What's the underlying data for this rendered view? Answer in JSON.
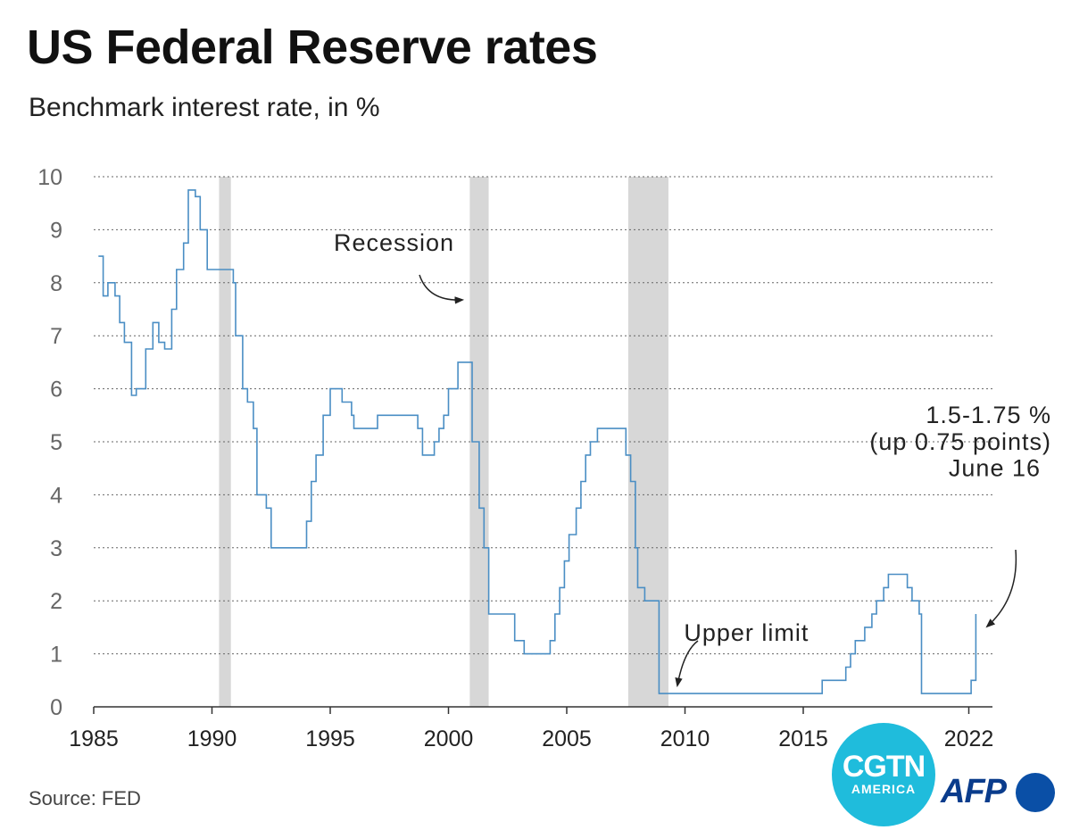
{
  "header": {
    "title": "US Federal Reserve rates",
    "subtitle": "Benchmark interest rate, in %"
  },
  "footer": {
    "source": "Source: FED"
  },
  "logos": {
    "cgtn_main": "CGTN",
    "cgtn_sub": "AMERICA",
    "afp": "AFP"
  },
  "colors": {
    "line": "#4a8ec4",
    "recession": "#d7d7d7",
    "grid": "#666666",
    "cgtn": "#1fbcdc",
    "afp": "#0a3c8c"
  },
  "chart_data": {
    "type": "line",
    "title": "US Federal Reserve rates",
    "subtitle": "Benchmark interest rate, in %",
    "xlim": [
      1985,
      2023
    ],
    "ylim": [
      0,
      10
    ],
    "x_ticks": [
      {
        "value": 1985,
        "label": "1985"
      },
      {
        "value": 1990,
        "label": "1990"
      },
      {
        "value": 1995,
        "label": "1995"
      },
      {
        "value": 2000,
        "label": "2000"
      },
      {
        "value": 2005,
        "label": "2005"
      },
      {
        "value": 2010,
        "label": "2010"
      },
      {
        "value": 2015,
        "label": "2015"
      },
      {
        "value": 2022,
        "label": "2022"
      }
    ],
    "y_ticks": [
      0,
      1,
      2,
      3,
      4,
      5,
      6,
      7,
      8,
      9,
      10
    ],
    "grid": "horizontal dotted",
    "step": true,
    "recessions": [
      {
        "start": 1990.3,
        "end": 1990.8
      },
      {
        "start": 2000.9,
        "end": 2001.7
      },
      {
        "start": 2007.6,
        "end": 2009.3
      }
    ],
    "series": [
      {
        "name": "Upper limit",
        "points": [
          [
            1985.2,
            8.5
          ],
          [
            1985.4,
            7.75
          ],
          [
            1985.6,
            8.0
          ],
          [
            1985.9,
            7.75
          ],
          [
            1986.1,
            7.25
          ],
          [
            1986.3,
            6.875
          ],
          [
            1986.6,
            5.875
          ],
          [
            1986.8,
            6.0
          ],
          [
            1987.2,
            6.75
          ],
          [
            1987.5,
            7.25
          ],
          [
            1987.75,
            6.875
          ],
          [
            1988.0,
            6.75
          ],
          [
            1988.3,
            7.5
          ],
          [
            1988.5,
            8.25
          ],
          [
            1988.8,
            8.75
          ],
          [
            1989.0,
            9.75
          ],
          [
            1989.3,
            9.625
          ],
          [
            1989.5,
            9.0
          ],
          [
            1989.8,
            8.25
          ],
          [
            1990.9,
            8.0
          ],
          [
            1991.0,
            7.0
          ],
          [
            1991.3,
            6.0
          ],
          [
            1991.5,
            5.75
          ],
          [
            1991.75,
            5.25
          ],
          [
            1991.9,
            4.0
          ],
          [
            1992.3,
            3.75
          ],
          [
            1992.5,
            3.0
          ],
          [
            1994.0,
            3.5
          ],
          [
            1994.2,
            4.25
          ],
          [
            1994.4,
            4.75
          ],
          [
            1994.7,
            5.5
          ],
          [
            1995.0,
            6.0
          ],
          [
            1995.5,
            5.75
          ],
          [
            1995.9,
            5.5
          ],
          [
            1996.0,
            5.25
          ],
          [
            1997.0,
            5.5
          ],
          [
            1998.7,
            5.25
          ],
          [
            1998.9,
            4.75
          ],
          [
            1999.4,
            5.0
          ],
          [
            1999.6,
            5.25
          ],
          [
            1999.8,
            5.5
          ],
          [
            2000.0,
            6.0
          ],
          [
            2000.4,
            6.5
          ],
          [
            2001.0,
            5.0
          ],
          [
            2001.3,
            3.75
          ],
          [
            2001.5,
            3.0
          ],
          [
            2001.7,
            1.75
          ],
          [
            2002.8,
            1.25
          ],
          [
            2003.2,
            1.0
          ],
          [
            2004.3,
            1.25
          ],
          [
            2004.5,
            1.75
          ],
          [
            2004.7,
            2.25
          ],
          [
            2004.9,
            2.75
          ],
          [
            2005.1,
            3.25
          ],
          [
            2005.4,
            3.75
          ],
          [
            2005.6,
            4.25
          ],
          [
            2005.8,
            4.75
          ],
          [
            2006.0,
            5.0
          ],
          [
            2006.3,
            5.25
          ],
          [
            2007.5,
            4.75
          ],
          [
            2007.7,
            4.25
          ],
          [
            2007.9,
            3.0
          ],
          [
            2008.0,
            2.25
          ],
          [
            2008.3,
            2.0
          ],
          [
            2008.9,
            0.25
          ],
          [
            2015.8,
            0.5
          ],
          [
            2016.8,
            0.75
          ],
          [
            2017.0,
            1.0
          ],
          [
            2017.2,
            1.25
          ],
          [
            2017.6,
            1.5
          ],
          [
            2017.9,
            1.75
          ],
          [
            2018.1,
            2.0
          ],
          [
            2018.4,
            2.25
          ],
          [
            2018.6,
            2.5
          ],
          [
            2019.4,
            2.25
          ],
          [
            2019.6,
            2.0
          ],
          [
            2019.9,
            1.75
          ],
          [
            2020.0,
            0.25
          ],
          [
            2022.1,
            0.5
          ],
          [
            2022.3,
            1.75
          ]
        ]
      }
    ],
    "annotations": [
      {
        "id": "recession",
        "text": "Recession",
        "x": 1997.7,
        "y": 8.6
      },
      {
        "id": "upper-limit",
        "text": "Upper limit",
        "x": 2012.6,
        "y": 1.25
      },
      {
        "id": "june-line-1",
        "text": "1.5-1.75 %",
        "x": 2021.2,
        "y": 5.35
      },
      {
        "id": "june-line-2",
        "text": "(up 0.75 points)",
        "x": 2021.2,
        "y": 4.85
      },
      {
        "id": "june-line-3",
        "text": "June 16",
        "x": 2021.2,
        "y": 4.35
      }
    ]
  }
}
